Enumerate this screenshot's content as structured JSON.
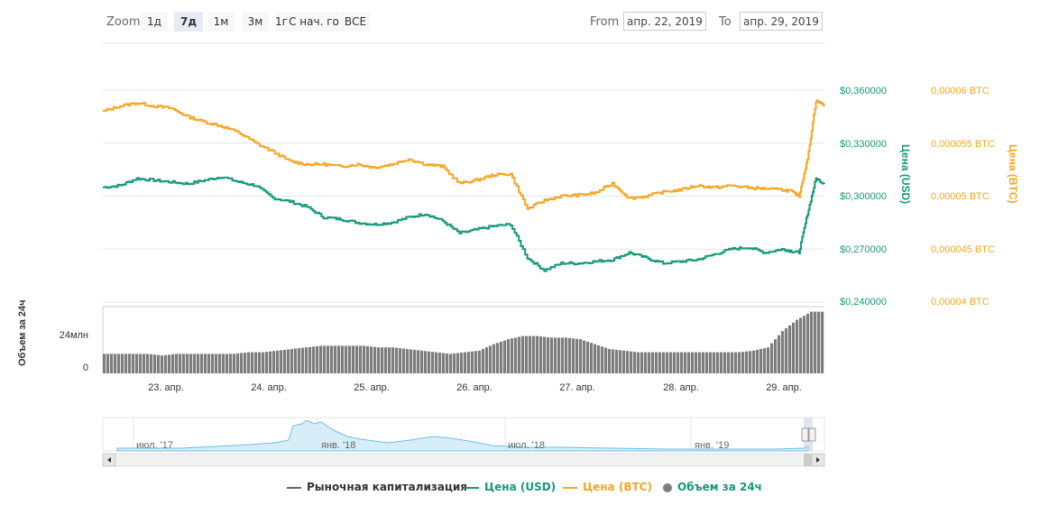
{
  "toolbar": {
    "zoom_label": "Zoom",
    "buttons": [
      "1д",
      "7д",
      "1м",
      "3м",
      "1г",
      "С нач. го",
      "ВСЕ"
    ],
    "active": "7д",
    "from_label": "From",
    "from_value": "апр. 22, 2019",
    "to_label": "To",
    "to_value": "апр. 29, 2019"
  },
  "axes": {
    "usd_ticks": [
      "$0,360000",
      "$0,330000",
      "$0,300000",
      "$0,270000",
      "$0,240000"
    ],
    "usd_title": "Цена (USD)",
    "btc_ticks": [
      "0,00006 BTC",
      "0,000055 BTC",
      "0,00005 BTC",
      "0,000045 BTC",
      "0,00004 BTC"
    ],
    "btc_title": "Цена (BTC)",
    "volume_title": "Объем за 24ч",
    "volume_ticks": [
      "24млн",
      "0"
    ],
    "x_ticks": [
      "23. апр.",
      "24. апр.",
      "25. апр.",
      "26. апр.",
      "27. апр.",
      "28. апр.",
      "29. апр."
    ],
    "navigator_ticks": [
      "июл. '17",
      "янв. '18",
      "июл. '18",
      "янв. '19"
    ]
  },
  "legend": {
    "market_cap": "Рыночная капитализация",
    "price_usd": "Цена (USD)",
    "price_btc": "Цена (BTC)",
    "volume": "Объем за 24ч"
  },
  "colors": {
    "usd": "#16987a",
    "btc": "#f5a623",
    "volume": "#7d7d7d",
    "market_cap": "#666666",
    "navigator": "#6fbde3"
  },
  "chart_data": {
    "type": "line",
    "x_range": [
      "2019-04-22 10:00",
      "2019-04-29 12:00"
    ],
    "usd_range": [
      0.24,
      0.36
    ],
    "btc_range": [
      4e-05,
      6e-05
    ],
    "series": [
      {
        "name": "Цена (USD)",
        "axis": "usd",
        "x": [
          "04-22 10:00",
          "04-22 14:00",
          "04-22 18:00",
          "04-22 22:00",
          "04-23 02:00",
          "04-23 06:00",
          "04-23 10:00",
          "04-23 14:00",
          "04-23 18:00",
          "04-23 22:00",
          "04-24 02:00",
          "04-24 06:00",
          "04-24 10:00",
          "04-24 14:00",
          "04-24 18:00",
          "04-24 22:00",
          "04-25 02:00",
          "04-25 06:00",
          "04-25 10:00",
          "04-25 14:00",
          "04-25 18:00",
          "04-25 22:00",
          "04-26 02:00",
          "04-26 06:00",
          "04-26 10:00",
          "04-26 14:00",
          "04-26 18:00",
          "04-26 22:00",
          "04-27 02:00",
          "04-27 06:00",
          "04-27 10:00",
          "04-27 14:00",
          "04-27 18:00",
          "04-27 22:00",
          "04-28 02:00",
          "04-28 06:00",
          "04-28 10:00",
          "04-28 14:00",
          "04-28 18:00",
          "04-28 22:00",
          "04-29 02:00",
          "04-29 04:00",
          "04-29 06:00",
          "04-29 08:00",
          "04-29 10:00",
          "04-29 12:00"
        ],
        "values": [
          0.305,
          0.306,
          0.31,
          0.309,
          0.308,
          0.307,
          0.309,
          0.311,
          0.308,
          0.306,
          0.299,
          0.297,
          0.294,
          0.288,
          0.287,
          0.285,
          0.284,
          0.285,
          0.288,
          0.29,
          0.286,
          0.279,
          0.281,
          0.283,
          0.284,
          0.265,
          0.258,
          0.262,
          0.262,
          0.263,
          0.264,
          0.268,
          0.265,
          0.262,
          0.263,
          0.264,
          0.267,
          0.27,
          0.271,
          0.268,
          0.27,
          0.269,
          0.268,
          0.29,
          0.31,
          0.307
        ]
      },
      {
        "name": "Цена (BTC)",
        "axis": "btc",
        "x": [
          "04-22 10:00",
          "04-22 14:00",
          "04-22 18:00",
          "04-22 22:00",
          "04-23 02:00",
          "04-23 06:00",
          "04-23 10:00",
          "04-23 14:00",
          "04-23 18:00",
          "04-23 22:00",
          "04-24 02:00",
          "04-24 06:00",
          "04-24 10:00",
          "04-24 14:00",
          "04-24 18:00",
          "04-24 22:00",
          "04-25 02:00",
          "04-25 06:00",
          "04-25 10:00",
          "04-25 14:00",
          "04-25 18:00",
          "04-25 22:00",
          "04-26 02:00",
          "04-26 06:00",
          "04-26 10:00",
          "04-26 14:00",
          "04-26 18:00",
          "04-26 22:00",
          "04-27 02:00",
          "04-27 06:00",
          "04-27 10:00",
          "04-27 14:00",
          "04-27 18:00",
          "04-27 22:00",
          "04-28 02:00",
          "04-28 06:00",
          "04-28 10:00",
          "04-28 14:00",
          "04-28 18:00",
          "04-28 22:00",
          "04-29 02:00",
          "04-29 04:00",
          "04-29 06:00",
          "04-29 08:00",
          "04-29 10:00",
          "04-29 12:00"
        ],
        "values": [
          5.8e-05,
          5.85e-05,
          5.88e-05,
          5.85e-05,
          5.83e-05,
          5.75e-05,
          5.7e-05,
          5.66e-05,
          5.6e-05,
          5.5e-05,
          5.42e-05,
          5.33e-05,
          5.3e-05,
          5.3e-05,
          5.28e-05,
          5.3e-05,
          5.27e-05,
          5.3e-05,
          5.35e-05,
          5.3e-05,
          5.28e-05,
          5.12e-05,
          5.15e-05,
          5.2e-05,
          5.21e-05,
          4.88e-05,
          4.96e-05,
          5e-05,
          5.01e-05,
          5.03e-05,
          5.12e-05,
          4.98e-05,
          5e-05,
          5.04e-05,
          5.06e-05,
          5.1e-05,
          5.08e-05,
          5.1e-05,
          5.08e-05,
          5.07e-05,
          5.06e-05,
          5.05e-05,
          5e-05,
          5.35e-05,
          5.9e-05,
          5.86e-05
        ]
      },
      {
        "name": "Объем за 24ч",
        "axis": "volume",
        "type": "column",
        "unit": "млн",
        "values": [
          12,
          12,
          12,
          12,
          11,
          12,
          12,
          12,
          12,
          12,
          13,
          13,
          14,
          15,
          16,
          17,
          17,
          17,
          17,
          16,
          16,
          15,
          14,
          13,
          12,
          13,
          14,
          18,
          21,
          23,
          23,
          22,
          22,
          21,
          18,
          15,
          14,
          13,
          13,
          13,
          13,
          13,
          13,
          13,
          13,
          14,
          16,
          26,
          33,
          38
        ]
      }
    ]
  }
}
